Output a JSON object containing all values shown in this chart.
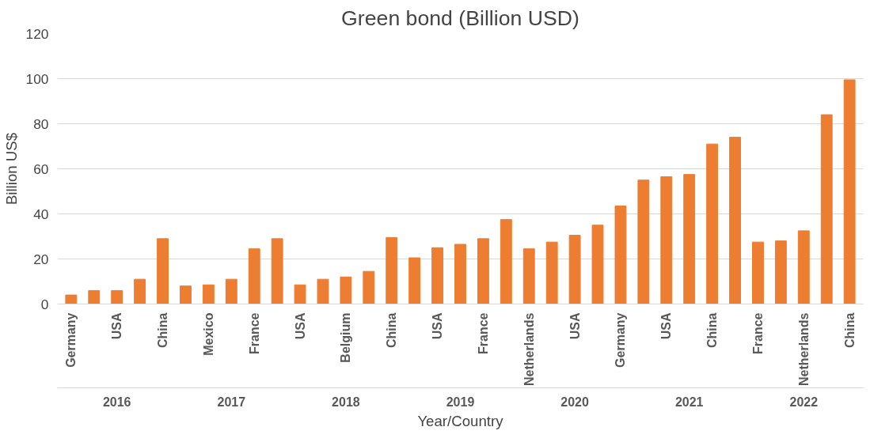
{
  "chart_data": {
    "type": "bar",
    "title": "Green bond (Billion USD)",
    "xlabel": "Year/Country",
    "ylabel": "Billion US$",
    "categories": [
      "Germany",
      null,
      "USA",
      null,
      "China",
      null,
      "Mexico",
      null,
      "France",
      null,
      "USA",
      null,
      "Belgium",
      null,
      "China",
      null,
      "USA",
      null,
      "France",
      null,
      "Netherlands",
      null,
      "USA",
      null,
      "Germany",
      null,
      "USA",
      null,
      "China",
      null,
      "France",
      null,
      "Netherlands",
      null,
      "China"
    ],
    "values": [
      4,
      6,
      6,
      11,
      29,
      8,
      8.5,
      11,
      24.5,
      29,
      8.5,
      11,
      12,
      14.5,
      29.5,
      20.5,
      25,
      26.5,
      29,
      37.5,
      24.5,
      27.5,
      30.5,
      35,
      43.5,
      55,
      56.5,
      57.5,
      71,
      74,
      27.5,
      28,
      32.5,
      84,
      99.5
    ],
    "color": "#ed7d31",
    "annotations": [
      "2016",
      "2017",
      "2018",
      "2019",
      "2020",
      "2021",
      "2022"
    ],
    "ylim": [
      0,
      120
    ],
    "yticks": [
      0,
      20,
      40,
      60,
      80,
      100,
      120
    ],
    "grid": "y"
  }
}
